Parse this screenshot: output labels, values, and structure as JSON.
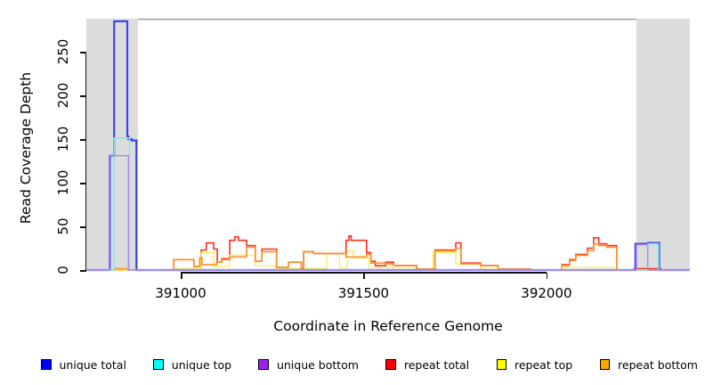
{
  "chart_data": {
    "type": "line",
    "subtype": "step-coverage",
    "title": "",
    "xlabel": "Coordinate in Reference Genome",
    "ylabel": "Read Coverage Depth",
    "xlim": [
      390742,
      392392
    ],
    "ylim": [
      0,
      288
    ],
    "x_ticks": [
      "391000",
      "391500",
      "392000"
    ],
    "x_tick_values": [
      391000,
      391500,
      392000
    ],
    "y_ticks": [
      "0",
      "50",
      "100",
      "150",
      "200",
      "250"
    ],
    "y_tick_values": [
      0,
      50,
      100,
      150,
      200,
      250
    ],
    "grid": false,
    "legend_position": "bottom",
    "top_rule_color": "#8e8e8e",
    "shaded_regions": [
      {
        "x0": 390742,
        "x1": 390883,
        "color": "#dcdcdc"
      },
      {
        "x0": 392246,
        "x1": 392392,
        "color": "#dcdcdc"
      }
    ],
    "series": [
      {
        "name": "repeat total",
        "color": "#fb2e20",
        "line_width": 1.6,
        "points": [
          [
            390742,
            0
          ],
          [
            390981,
            12
          ],
          [
            391036,
            4
          ],
          [
            391052,
            14
          ],
          [
            391056,
            23
          ],
          [
            391070,
            31
          ],
          [
            391090,
            24
          ],
          [
            391100,
            9
          ],
          [
            391112,
            13
          ],
          [
            391134,
            34
          ],
          [
            391148,
            38
          ],
          [
            391158,
            34
          ],
          [
            391180,
            28
          ],
          [
            391204,
            10
          ],
          [
            391222,
            24
          ],
          [
            391262,
            3
          ],
          [
            391295,
            9
          ],
          [
            391330,
            2
          ],
          [
            391336,
            21
          ],
          [
            391363,
            19
          ],
          [
            391452,
            34
          ],
          [
            391460,
            39
          ],
          [
            391466,
            34
          ],
          [
            391508,
            20
          ],
          [
            391520,
            10
          ],
          [
            391532,
            5
          ],
          [
            391560,
            9
          ],
          [
            391582,
            5
          ],
          [
            391645,
            1
          ],
          [
            391695,
            23
          ],
          [
            391752,
            31
          ],
          [
            391766,
            8
          ],
          [
            391820,
            5
          ],
          [
            391868,
            1
          ],
          [
            391957,
            0
          ],
          [
            392042,
            6
          ],
          [
            392063,
            12
          ],
          [
            392080,
            18
          ],
          [
            392112,
            25
          ],
          [
            392129,
            37
          ],
          [
            392143,
            30
          ],
          [
            392165,
            28
          ],
          [
            392192,
            0
          ],
          [
            392240,
            1.5
          ],
          [
            392312,
            0
          ],
          [
            392392,
            0
          ]
        ]
      },
      {
        "name": "repeat top",
        "color": "#f8ef52",
        "line_width": 1.3,
        "points": [
          [
            390742,
            0
          ],
          [
            390981,
            2
          ],
          [
            391056,
            20
          ],
          [
            391090,
            4
          ],
          [
            391134,
            17
          ],
          [
            391204,
            5
          ],
          [
            391260,
            2
          ],
          [
            391399,
            19
          ],
          [
            391434,
            3
          ],
          [
            391455,
            22
          ],
          [
            391472,
            14
          ],
          [
            391515,
            3
          ],
          [
            391580,
            1
          ],
          [
            391690,
            20
          ],
          [
            391752,
            7
          ],
          [
            391820,
            1
          ],
          [
            391868,
            0
          ],
          [
            392050,
            3
          ],
          [
            392185,
            0
          ],
          [
            392392,
            0
          ]
        ]
      },
      {
        "name": "repeat bottom",
        "color": "#fb9126",
        "line_width": 1.6,
        "points": [
          [
            390742,
            0
          ],
          [
            390818,
            1.5
          ],
          [
            390858,
            0
          ],
          [
            390981,
            12
          ],
          [
            391036,
            4
          ],
          [
            391052,
            14
          ],
          [
            391058,
            6
          ],
          [
            391098,
            9
          ],
          [
            391112,
            12
          ],
          [
            391134,
            15
          ],
          [
            391180,
            26
          ],
          [
            391204,
            10
          ],
          [
            391222,
            21
          ],
          [
            391262,
            3
          ],
          [
            391295,
            9
          ],
          [
            391330,
            2
          ],
          [
            391336,
            21
          ],
          [
            391363,
            19
          ],
          [
            391452,
            15
          ],
          [
            391508,
            18
          ],
          [
            391520,
            8
          ],
          [
            391560,
            7
          ],
          [
            391582,
            5
          ],
          [
            391645,
            1
          ],
          [
            391695,
            22
          ],
          [
            391752,
            25
          ],
          [
            391766,
            7
          ],
          [
            391820,
            5
          ],
          [
            391868,
            1
          ],
          [
            391957,
            0
          ],
          [
            392042,
            5
          ],
          [
            392063,
            11
          ],
          [
            392080,
            17
          ],
          [
            392112,
            22
          ],
          [
            392129,
            30
          ],
          [
            392143,
            28
          ],
          [
            392165,
            26
          ],
          [
            392192,
            0
          ],
          [
            392392,
            0
          ]
        ]
      },
      {
        "name": "unique total",
        "color": "#3c45ee",
        "line_width": 2.2,
        "points": [
          [
            390742,
            0
          ],
          [
            390806,
            131
          ],
          [
            390818,
            285
          ],
          [
            390854,
            153
          ],
          [
            390857,
            150
          ],
          [
            390866,
            148.5
          ],
          [
            390879,
            0
          ],
          [
            392243,
            30
          ],
          [
            392277,
            31
          ],
          [
            392308,
            0
          ],
          [
            392392,
            0
          ]
        ]
      },
      {
        "name": "unique top",
        "color": "#83e9f0",
        "line_width": 1.5,
        "points": [
          [
            390742,
            0
          ],
          [
            390818,
            151.5
          ],
          [
            390860,
            0
          ],
          [
            392277,
            30
          ],
          [
            392306,
            0
          ],
          [
            392392,
            0
          ]
        ]
      },
      {
        "name": "unique bottom",
        "color": "#b289ea",
        "line_width": 1.4,
        "points": [
          [
            390742,
            0
          ],
          [
            390804,
            131
          ],
          [
            390857,
            0
          ],
          [
            392246,
            29
          ],
          [
            392277,
            0
          ],
          [
            392392,
            0
          ]
        ]
      }
    ]
  },
  "axes": {
    "y_title": "Read Coverage Depth",
    "x_title": "Coordinate in Reference Genome"
  },
  "legend": {
    "items": [
      {
        "label": "unique total",
        "color": "#0000ff"
      },
      {
        "label": "unique top",
        "color": "#00ffff"
      },
      {
        "label": "unique bottom",
        "color": "#a020f0"
      },
      {
        "label": "repeat total",
        "color": "#ff0000"
      },
      {
        "label": "repeat top",
        "color": "#ffff00"
      },
      {
        "label": "repeat bottom",
        "color": "#ffa500"
      }
    ]
  }
}
